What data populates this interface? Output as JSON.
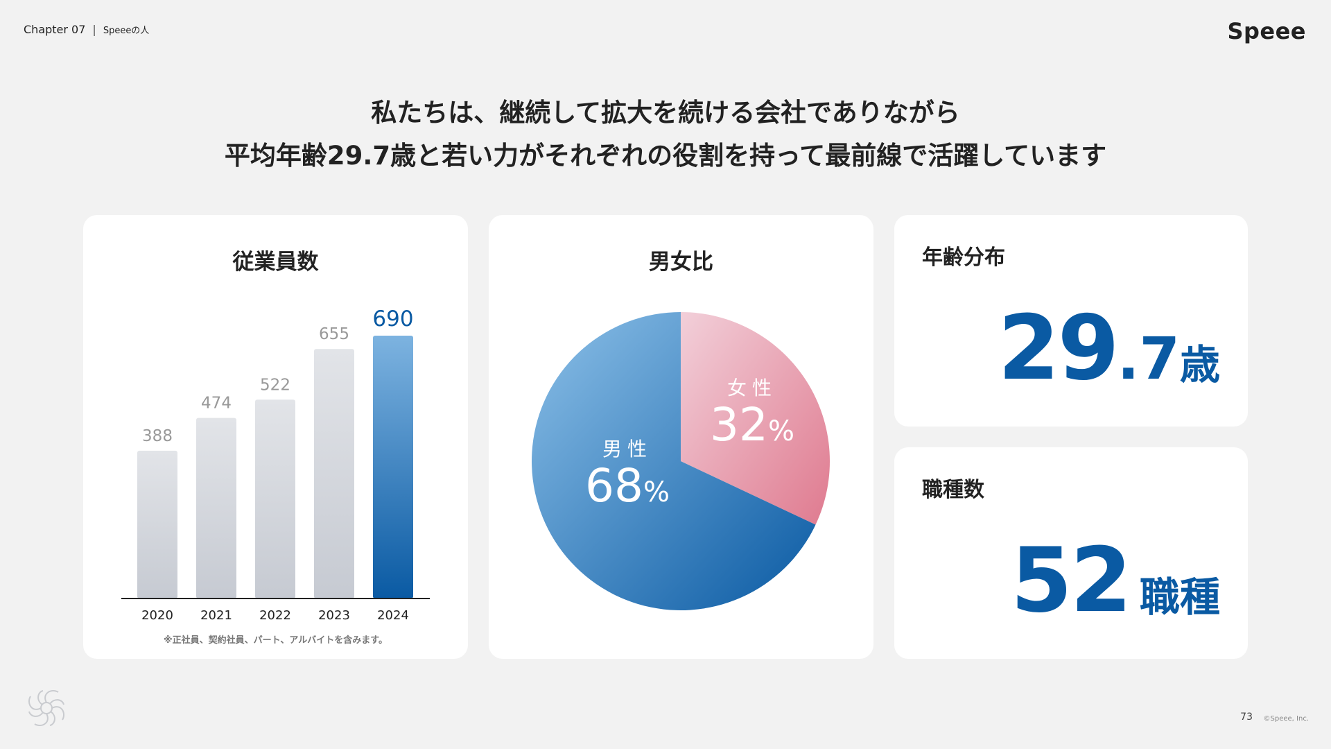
{
  "header": {
    "chapter": "Chapter 07",
    "separator": "|",
    "section": "Speeeの人",
    "logo": "Speee"
  },
  "headline": {
    "line1": "私たちは、継続して拡大を続ける会社でありながら",
    "line2": "平均年齢29.7歳と若い力がそれぞれの役割を持って最前線で活躍しています"
  },
  "employees_card": {
    "title": "従業員数",
    "note": "※正社員、契約社員、パート、アルバイトを含みます。"
  },
  "gender_card": {
    "title": "男女比",
    "male_label": "男性",
    "male_value": "68",
    "female_label": "女性",
    "female_value": "32",
    "unit": "%"
  },
  "age_card": {
    "title": "年齢分布",
    "value_int": "29",
    "value_dec": ".7",
    "unit": "歳"
  },
  "jobs_card": {
    "title": "職種数",
    "value": "52",
    "unit": "職種"
  },
  "footer": {
    "page_number": "73",
    "copyright": "©Speee, Inc."
  },
  "colors": {
    "accent": "#0a5aa3",
    "bar_gray": "#d3d6dc",
    "bar_highlight": "#0a5aa3",
    "female_pink": "#e58a9c",
    "male_blue": "#2e7fc7"
  },
  "chart_data": [
    {
      "type": "bar",
      "title": "従業員数",
      "categories": [
        "2020",
        "2021",
        "2022",
        "2023",
        "2024"
      ],
      "values": [
        388,
        474,
        522,
        655,
        690
      ],
      "highlight_index": 4,
      "ylim": [
        0,
        690
      ],
      "grid": false,
      "data_labels": true
    },
    {
      "type": "pie",
      "title": "男女比",
      "slices": [
        {
          "label": "女性",
          "value": 32
        },
        {
          "label": "男性",
          "value": 68
        }
      ]
    }
  ]
}
